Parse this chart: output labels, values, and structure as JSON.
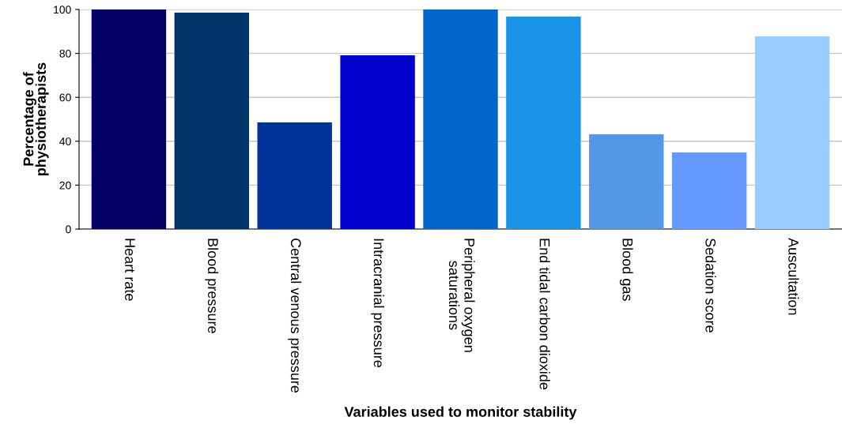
{
  "chart_data": {
    "type": "bar",
    "xlabel": "Variables used to monitor stability",
    "ylabel": "Percentage of\nphysiotherapists",
    "categories": [
      "Heart rate",
      "Blood pressure",
      "Central venous pressure",
      "Intracranial pressure",
      "Peripheral oxygen\nsaturations",
      "End tidal carbon dioxide",
      "Blood gas",
      "Sedation score",
      "Auscultation"
    ],
    "values": [
      100,
      98.6,
      48.6,
      79.1,
      100,
      96.8,
      43.2,
      34.9,
      87.8
    ],
    "colors": [
      "#000066",
      "#003366",
      "#003399",
      "#0000cc",
      "#0066cc",
      "#1a94e6",
      "#5599e6",
      "#6699ff",
      "#99ccff"
    ],
    "ylim": [
      0,
      100
    ],
    "yticks": [
      0,
      20,
      40,
      60,
      80,
      100
    ],
    "grid": "y"
  }
}
